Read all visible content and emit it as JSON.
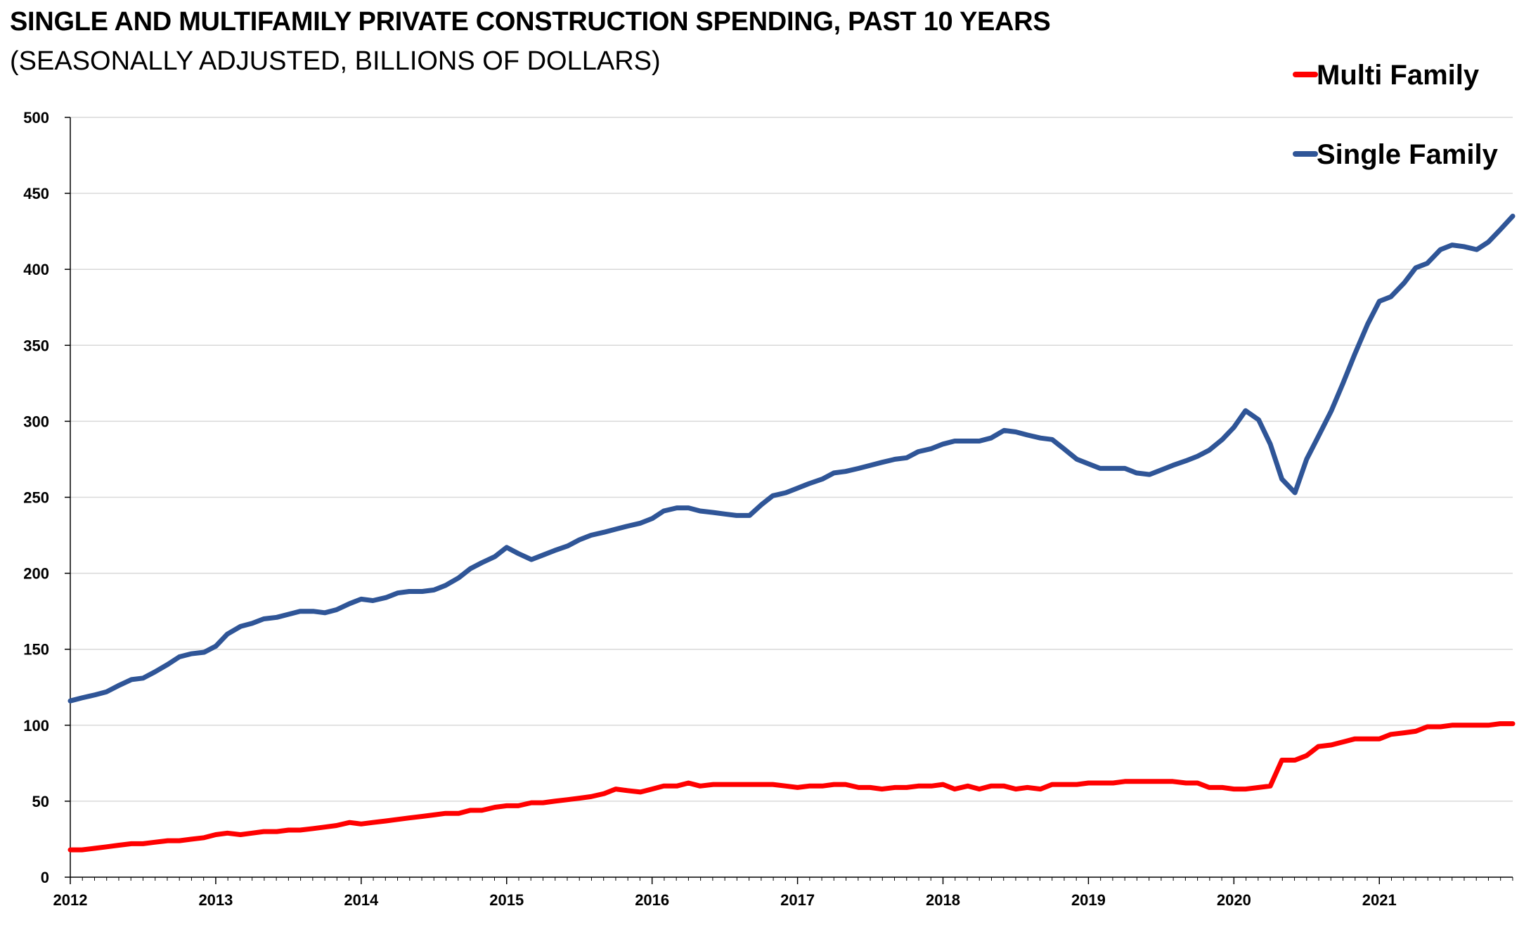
{
  "title": "SINGLE AND MULTIFAMILY PRIVATE CONSTRUCTION SPENDING, PAST 10 YEARS",
  "subtitle": "(SEASONALLY ADJUSTED, BILLIONS OF DOLLARS)",
  "chart_data": {
    "type": "line",
    "title": "SINGLE AND MULTIFAMILY PRIVATE CONSTRUCTION SPENDING, PAST 10 YEARS",
    "subtitle": "(SEASONALLY ADJUSTED, BILLIONS OF DOLLARS)",
    "xlabel": "",
    "ylabel": "",
    "xlim": [
      2012,
      2021.917
    ],
    "ylim": [
      0,
      500
    ],
    "yticks": [
      "0",
      "50",
      "100",
      "150",
      "200",
      "250",
      "300",
      "350",
      "400",
      "450",
      "500"
    ],
    "xticks": [
      "2012",
      "2013",
      "2014",
      "2015",
      "2016",
      "2017",
      "2018",
      "2019",
      "2020",
      "2021"
    ],
    "grid": "horizontal",
    "legend": "top-right",
    "series": [
      {
        "name": "Multi Family",
        "color": "#ff0000",
        "points": [
          [
            2012.0,
            18
          ],
          [
            2012.08,
            18
          ],
          [
            2012.17,
            19
          ],
          [
            2012.25,
            20
          ],
          [
            2012.33,
            21
          ],
          [
            2012.42,
            22
          ],
          [
            2012.5,
            22
          ],
          [
            2012.58,
            23
          ],
          [
            2012.67,
            24
          ],
          [
            2012.75,
            24
          ],
          [
            2012.83,
            25
          ],
          [
            2012.92,
            26
          ],
          [
            2013.0,
            28
          ],
          [
            2013.08,
            29
          ],
          [
            2013.17,
            28
          ],
          [
            2013.25,
            29
          ],
          [
            2013.33,
            30
          ],
          [
            2013.42,
            30
          ],
          [
            2013.5,
            31
          ],
          [
            2013.58,
            31
          ],
          [
            2013.67,
            32
          ],
          [
            2013.75,
            33
          ],
          [
            2013.83,
            34
          ],
          [
            2013.92,
            36
          ],
          [
            2014.0,
            35
          ],
          [
            2014.08,
            36
          ],
          [
            2014.17,
            37
          ],
          [
            2014.25,
            38
          ],
          [
            2014.33,
            39
          ],
          [
            2014.42,
            40
          ],
          [
            2014.5,
            41
          ],
          [
            2014.58,
            42
          ],
          [
            2014.67,
            42
          ],
          [
            2014.75,
            44
          ],
          [
            2014.83,
            44
          ],
          [
            2014.92,
            46
          ],
          [
            2015.0,
            47
          ],
          [
            2015.08,
            47
          ],
          [
            2015.17,
            49
          ],
          [
            2015.25,
            49
          ],
          [
            2015.33,
            50
          ],
          [
            2015.42,
            51
          ],
          [
            2015.5,
            52
          ],
          [
            2015.58,
            53
          ],
          [
            2015.67,
            55
          ],
          [
            2015.75,
            58
          ],
          [
            2015.83,
            57
          ],
          [
            2015.92,
            56
          ],
          [
            2016.0,
            58
          ],
          [
            2016.08,
            60
          ],
          [
            2016.17,
            60
          ],
          [
            2016.25,
            62
          ],
          [
            2016.33,
            60
          ],
          [
            2016.42,
            61
          ],
          [
            2016.5,
            61
          ],
          [
            2016.58,
            61
          ],
          [
            2016.67,
            61
          ],
          [
            2016.75,
            61
          ],
          [
            2016.83,
            61
          ],
          [
            2016.92,
            60
          ],
          [
            2017.0,
            59
          ],
          [
            2017.08,
            60
          ],
          [
            2017.17,
            60
          ],
          [
            2017.25,
            61
          ],
          [
            2017.33,
            61
          ],
          [
            2017.42,
            59
          ],
          [
            2017.5,
            59
          ],
          [
            2017.58,
            58
          ],
          [
            2017.67,
            59
          ],
          [
            2017.75,
            59
          ],
          [
            2017.83,
            60
          ],
          [
            2017.92,
            60
          ],
          [
            2018.0,
            61
          ],
          [
            2018.08,
            58
          ],
          [
            2018.17,
            60
          ],
          [
            2018.25,
            58
          ],
          [
            2018.33,
            60
          ],
          [
            2018.42,
            60
          ],
          [
            2018.5,
            58
          ],
          [
            2018.58,
            59
          ],
          [
            2018.67,
            58
          ],
          [
            2018.75,
            61
          ],
          [
            2018.83,
            61
          ],
          [
            2018.92,
            61
          ],
          [
            2019.0,
            62
          ],
          [
            2019.08,
            62
          ],
          [
            2019.17,
            62
          ],
          [
            2019.25,
            63
          ],
          [
            2019.33,
            63
          ],
          [
            2019.42,
            63
          ],
          [
            2019.5,
            63
          ],
          [
            2019.58,
            63
          ],
          [
            2019.67,
            62
          ],
          [
            2019.75,
            62
          ],
          [
            2019.83,
            59
          ],
          [
            2019.92,
            59
          ],
          [
            2020.0,
            58
          ],
          [
            2020.08,
            58
          ],
          [
            2020.17,
            59
          ],
          [
            2020.25,
            60
          ],
          [
            2020.33,
            77
          ],
          [
            2020.42,
            77
          ],
          [
            2020.5,
            80
          ],
          [
            2020.58,
            86
          ],
          [
            2020.67,
            87
          ],
          [
            2020.75,
            89
          ],
          [
            2020.83,
            91
          ],
          [
            2020.92,
            91
          ],
          [
            2021.0,
            91
          ],
          [
            2021.08,
            94
          ],
          [
            2021.17,
            95
          ],
          [
            2021.25,
            96
          ],
          [
            2021.33,
            99
          ],
          [
            2021.42,
            99
          ],
          [
            2021.5,
            100
          ],
          [
            2021.58,
            100
          ],
          [
            2021.67,
            100
          ],
          [
            2021.75,
            100
          ],
          [
            2021.83,
            101
          ],
          [
            2021.917,
            101
          ]
        ]
      },
      {
        "name": "Single Family",
        "color": "#2f5597",
        "points": [
          [
            2012.0,
            116
          ],
          [
            2012.08,
            118
          ],
          [
            2012.17,
            120
          ],
          [
            2012.25,
            122
          ],
          [
            2012.33,
            126
          ],
          [
            2012.42,
            130
          ],
          [
            2012.5,
            131
          ],
          [
            2012.58,
            135
          ],
          [
            2012.67,
            140
          ],
          [
            2012.75,
            145
          ],
          [
            2012.83,
            147
          ],
          [
            2012.92,
            148
          ],
          [
            2013.0,
            152
          ],
          [
            2013.08,
            160
          ],
          [
            2013.17,
            165
          ],
          [
            2013.25,
            167
          ],
          [
            2013.33,
            170
          ],
          [
            2013.42,
            171
          ],
          [
            2013.5,
            173
          ],
          [
            2013.58,
            175
          ],
          [
            2013.67,
            175
          ],
          [
            2013.75,
            174
          ],
          [
            2013.83,
            176
          ],
          [
            2013.92,
            180
          ],
          [
            2014.0,
            183
          ],
          [
            2014.08,
            182
          ],
          [
            2014.17,
            184
          ],
          [
            2014.25,
            187
          ],
          [
            2014.33,
            188
          ],
          [
            2014.42,
            188
          ],
          [
            2014.5,
            189
          ],
          [
            2014.58,
            192
          ],
          [
            2014.67,
            197
          ],
          [
            2014.75,
            203
          ],
          [
            2014.83,
            207
          ],
          [
            2014.92,
            211
          ],
          [
            2015.0,
            217
          ],
          [
            2015.08,
            213
          ],
          [
            2015.17,
            209
          ],
          [
            2015.25,
            212
          ],
          [
            2015.33,
            215
          ],
          [
            2015.42,
            218
          ],
          [
            2015.5,
            222
          ],
          [
            2015.58,
            225
          ],
          [
            2015.67,
            227
          ],
          [
            2015.75,
            229
          ],
          [
            2015.83,
            231
          ],
          [
            2015.92,
            233
          ],
          [
            2016.0,
            236
          ],
          [
            2016.08,
            241
          ],
          [
            2016.17,
            243
          ],
          [
            2016.25,
            243
          ],
          [
            2016.33,
            241
          ],
          [
            2016.42,
            240
          ],
          [
            2016.5,
            239
          ],
          [
            2016.58,
            238
          ],
          [
            2016.67,
            238
          ],
          [
            2016.75,
            245
          ],
          [
            2016.83,
            251
          ],
          [
            2016.92,
            253
          ],
          [
            2017.0,
            256
          ],
          [
            2017.08,
            259
          ],
          [
            2017.17,
            262
          ],
          [
            2017.25,
            266
          ],
          [
            2017.33,
            267
          ],
          [
            2017.42,
            269
          ],
          [
            2017.5,
            271
          ],
          [
            2017.58,
            273
          ],
          [
            2017.67,
            275
          ],
          [
            2017.75,
            276
          ],
          [
            2017.83,
            280
          ],
          [
            2017.92,
            282
          ],
          [
            2018.0,
            285
          ],
          [
            2018.08,
            287
          ],
          [
            2018.17,
            287
          ],
          [
            2018.25,
            287
          ],
          [
            2018.33,
            289
          ],
          [
            2018.42,
            294
          ],
          [
            2018.5,
            293
          ],
          [
            2018.58,
            291
          ],
          [
            2018.67,
            289
          ],
          [
            2018.75,
            288
          ],
          [
            2018.83,
            282
          ],
          [
            2018.92,
            275
          ],
          [
            2019.0,
            272
          ],
          [
            2019.08,
            269
          ],
          [
            2019.17,
            269
          ],
          [
            2019.25,
            269
          ],
          [
            2019.33,
            266
          ],
          [
            2019.42,
            265
          ],
          [
            2019.5,
            268
          ],
          [
            2019.58,
            271
          ],
          [
            2019.67,
            274
          ],
          [
            2019.75,
            277
          ],
          [
            2019.83,
            281
          ],
          [
            2019.92,
            288
          ],
          [
            2020.0,
            296
          ],
          [
            2020.08,
            307
          ],
          [
            2020.17,
            301
          ],
          [
            2020.25,
            285
          ],
          [
            2020.33,
            262
          ],
          [
            2020.42,
            253
          ],
          [
            2020.5,
            275
          ],
          [
            2020.58,
            290
          ],
          [
            2020.67,
            307
          ],
          [
            2020.75,
            325
          ],
          [
            2020.83,
            344
          ],
          [
            2020.92,
            364
          ],
          [
            2021.0,
            379
          ],
          [
            2021.08,
            382
          ],
          [
            2021.17,
            391
          ],
          [
            2021.25,
            401
          ],
          [
            2021.33,
            404
          ],
          [
            2021.42,
            413
          ],
          [
            2021.5,
            416
          ],
          [
            2021.58,
            415
          ],
          [
            2021.67,
            413
          ],
          [
            2021.75,
            418
          ],
          [
            2021.83,
            426
          ],
          [
            2021.917,
            435
          ]
        ]
      }
    ]
  }
}
